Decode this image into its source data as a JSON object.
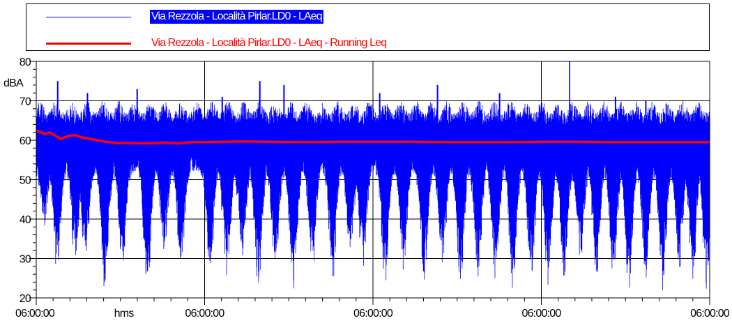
{
  "legend": {
    "entries": [
      {
        "label": "Via Rezzola - Località Pirlar.LD0 - LAeq",
        "color": "#0000ff"
      },
      {
        "label": "Via Rezzola - Località Pirlar.LD0 - LAeq - Running Leq",
        "color": "#ff0000"
      }
    ]
  },
  "chart_data": {
    "type": "line",
    "ylabel": "dBA",
    "xlabel": "hms",
    "ylim": [
      20,
      80
    ],
    "yticks": [
      "80",
      "70",
      "60",
      "50",
      "40",
      "30",
      "20"
    ],
    "xticks": [
      "06:00:00",
      "06:00:00",
      "06:00:00",
      "06:00:00",
      "06:00:00"
    ],
    "grid": true,
    "legend_position": "top",
    "series": [
      {
        "name": "Via Rezzola - Località Pirlar.LD0 - LAeq",
        "color": "#0000ff",
        "baseline": 63,
        "peak_max": 80,
        "dips": [
          {
            "t": 0.012,
            "min": 49
          },
          {
            "t": 0.031,
            "min": 36
          },
          {
            "t": 0.058,
            "min": 38
          },
          {
            "t": 0.073,
            "min": 39
          },
          {
            "t": 0.102,
            "min": 31
          },
          {
            "t": 0.128,
            "min": 37
          },
          {
            "t": 0.165,
            "min": 31
          },
          {
            "t": 0.19,
            "min": 42
          },
          {
            "t": 0.215,
            "min": 37
          },
          {
            "t": 0.258,
            "min": 36
          },
          {
            "t": 0.283,
            "min": 33
          },
          {
            "t": 0.306,
            "min": 40
          },
          {
            "t": 0.33,
            "min": 32
          },
          {
            "t": 0.355,
            "min": 38
          },
          {
            "t": 0.382,
            "min": 30
          },
          {
            "t": 0.41,
            "min": 37
          },
          {
            "t": 0.44,
            "min": 34
          },
          {
            "t": 0.466,
            "min": 40
          },
          {
            "t": 0.485,
            "min": 37
          },
          {
            "t": 0.518,
            "min": 33
          },
          {
            "t": 0.545,
            "min": 38
          },
          {
            "t": 0.576,
            "min": 34
          },
          {
            "t": 0.603,
            "min": 37
          },
          {
            "t": 0.63,
            "min": 33
          },
          {
            "t": 0.656,
            "min": 35
          },
          {
            "t": 0.682,
            "min": 34
          },
          {
            "t": 0.708,
            "min": 31
          },
          {
            "t": 0.735,
            "min": 35
          },
          {
            "t": 0.76,
            "min": 33
          },
          {
            "t": 0.784,
            "min": 34
          },
          {
            "t": 0.808,
            "min": 39
          },
          {
            "t": 0.832,
            "min": 35
          },
          {
            "t": 0.857,
            "min": 34
          },
          {
            "t": 0.88,
            "min": 30
          },
          {
            "t": 0.905,
            "min": 33
          },
          {
            "t": 0.93,
            "min": 31
          },
          {
            "t": 0.955,
            "min": 37
          },
          {
            "t": 0.975,
            "min": 35
          },
          {
            "t": 0.995,
            "min": 31
          }
        ],
        "spikes": [
          {
            "t": 0.032,
            "max": 75
          },
          {
            "t": 0.076,
            "max": 72
          },
          {
            "t": 0.15,
            "max": 73
          },
          {
            "t": 0.276,
            "max": 71
          },
          {
            "t": 0.332,
            "max": 75
          },
          {
            "t": 0.368,
            "max": 74
          },
          {
            "t": 0.51,
            "max": 72
          },
          {
            "t": 0.596,
            "max": 74
          },
          {
            "t": 0.688,
            "max": 72
          },
          {
            "t": 0.792,
            "max": 80
          },
          {
            "t": 0.86,
            "max": 71
          },
          {
            "t": 0.905,
            "max": 70
          }
        ]
      },
      {
        "name": "Via Rezzola - Località Pirlar.LD0 - LAeq - Running Leq",
        "color": "#ff0000",
        "points": [
          [
            0.0,
            62.5
          ],
          [
            0.012,
            61.6
          ],
          [
            0.02,
            62.0
          ],
          [
            0.028,
            61.2
          ],
          [
            0.036,
            60.3
          ],
          [
            0.048,
            61.1
          ],
          [
            0.058,
            61.3
          ],
          [
            0.068,
            60.7
          ],
          [
            0.085,
            60.2
          ],
          [
            0.1,
            59.7
          ],
          [
            0.12,
            59.3
          ],
          [
            0.14,
            59.3
          ],
          [
            0.17,
            59.2
          ],
          [
            0.19,
            59.4
          ],
          [
            0.21,
            59.2
          ],
          [
            0.23,
            59.5
          ],
          [
            0.25,
            59.5
          ],
          [
            0.28,
            59.6
          ],
          [
            0.3,
            59.7
          ],
          [
            0.34,
            59.6
          ],
          [
            0.4,
            59.5
          ],
          [
            0.45,
            59.6
          ],
          [
            0.5,
            59.6
          ],
          [
            0.55,
            59.6
          ],
          [
            0.6,
            59.5
          ],
          [
            0.65,
            59.5
          ],
          [
            0.7,
            59.5
          ],
          [
            0.75,
            59.6
          ],
          [
            0.8,
            59.6
          ],
          [
            0.85,
            59.5
          ],
          [
            0.9,
            59.5
          ],
          [
            0.95,
            59.5
          ],
          [
            1.0,
            59.5
          ]
        ]
      }
    ]
  }
}
